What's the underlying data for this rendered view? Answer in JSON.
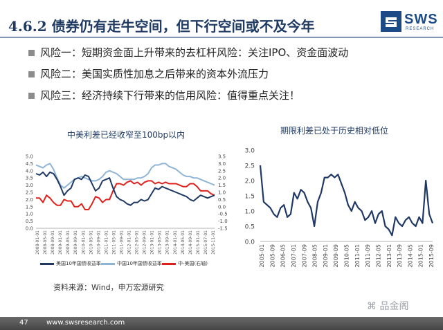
{
  "slide": {
    "title": "4.6.2 债券仍有走牛空间，但下行空间或不及今年",
    "logo_text": "SWS",
    "logo_sub": "RESEARCH"
  },
  "bullets": [
    "风险一：短期资金面上升带来的去杠杆风险：关注IPO、资金面波动",
    "风险二：美国实质性加息之后带来的资本外流压力",
    "风险三：经济持续下行带来的信用风险：值得重点关注！"
  ],
  "colors": {
    "navy": "#1f3a63",
    "us_series": "#1f3864",
    "cn_series": "#8eb4d6",
    "spread_series": "#e0201b",
    "right_series": "#1f3864"
  },
  "chart_data": [
    {
      "type": "line",
      "title": "中美利差已经收窄至100bp以内",
      "y_left_ticks": [
        "5.0",
        "4.5",
        "4.0",
        "3.5",
        "3.0",
        "2.5",
        "2.0",
        "1.5",
        "1.0",
        "0.5",
        "0.0"
      ],
      "y_right_ticks": [
        "3.5",
        "3.0",
        "2.5",
        "2.0",
        "1.5",
        "1.0",
        "0.5",
        "0.0",
        "-0.5",
        "-1.0",
        "-1.5"
      ],
      "ylim_left": [
        0,
        5
      ],
      "ylim_right": [
        -1.5,
        3.5
      ],
      "x_ticks": [
        "2008-01-01",
        "2008-05-01",
        "2008-09-01",
        "2009-01-01",
        "2009-05-01",
        "2009-09-01",
        "2010-01-01",
        "2010-05-01",
        "2010-09-01",
        "2011-01-01",
        "2011-05-01",
        "2011-09-01",
        "2012-01-01",
        "2012-05-01",
        "2012-09-01",
        "2013-01-01",
        "2013-05-01",
        "2013-09-01",
        "2014-01-01",
        "2014-05-01",
        "2014-09-01",
        "2015-01-01",
        "2015-07-01",
        "2015-11-01"
      ],
      "series": [
        {
          "name": "美国10年国债收益率",
          "axis": "left",
          "values": [
            3.8,
            3.7,
            3.9,
            3.6,
            3.9,
            3.8,
            3.4,
            2.9,
            2.3,
            2.6,
            2.8,
            3.4,
            3.5,
            3.4,
            3.7,
            3.6,
            3.1,
            2.6,
            2.8,
            3.3,
            3.4,
            3.5,
            2.8,
            2.2,
            2.0,
            1.9,
            1.7,
            1.6,
            1.8,
            1.8,
            2.0,
            1.9,
            2.0,
            2.4,
            2.8,
            2.7,
            2.9,
            2.8,
            2.7,
            2.6,
            2.5,
            2.4,
            2.3,
            2.2,
            2.0,
            1.9,
            2.1,
            2.3,
            2.2,
            2.1,
            2.2,
            2.3
          ]
        },
        {
          "name": "中国10年国债收益率",
          "axis": "left",
          "values": [
            4.4,
            4.3,
            4.2,
            4.4,
            4.5,
            4.1,
            3.5,
            3.0,
            2.8,
            3.0,
            3.2,
            3.4,
            3.5,
            3.6,
            3.5,
            3.4,
            3.3,
            3.3,
            3.4,
            3.6,
            3.9,
            4.0,
            3.9,
            3.8,
            3.6,
            3.4,
            3.4,
            3.4,
            3.4,
            3.5,
            3.5,
            3.6,
            3.8,
            4.2,
            4.4,
            4.4,
            4.5,
            4.5,
            4.3,
            4.2,
            4.1,
            3.9,
            3.7,
            3.6,
            3.6,
            3.5,
            3.5,
            3.4,
            3.3,
            3.2,
            3.1,
            3.0
          ]
        },
        {
          "name": "中-美国(右轴)",
          "axis": "right",
          "values": [
            0.6,
            0.6,
            0.3,
            0.8,
            0.6,
            0.3,
            0.1,
            0.1,
            0.5,
            0.4,
            0.4,
            0.0,
            0.0,
            0.2,
            -0.2,
            -0.2,
            0.2,
            0.7,
            0.6,
            0.3,
            0.5,
            0.5,
            1.1,
            1.6,
            1.6,
            1.5,
            1.7,
            1.8,
            1.6,
            1.7,
            1.5,
            1.7,
            1.8,
            1.8,
            1.6,
            1.7,
            1.6,
            1.7,
            1.6,
            1.6,
            1.6,
            1.5,
            1.4,
            1.4,
            1.6,
            1.6,
            1.4,
            1.1,
            1.1,
            1.1,
            0.9,
            0.8
          ]
        }
      ],
      "legend": [
        "美国10年国债收益率",
        "中国10年国债收益率",
        "中-美国(右轴)"
      ]
    },
    {
      "type": "line",
      "title": "期限利差已处于历史相对低位",
      "y_ticks": [
        "3.0",
        "2.5",
        "2.0",
        "1.5",
        "1.0",
        "0.5",
        "0.0"
      ],
      "ylim": [
        0,
        3
      ],
      "x_ticks": [
        "2005-01",
        "2005-09",
        "2006-05",
        "2007-01",
        "2007-09",
        "2008-05",
        "2009-01",
        "2009-09",
        "2010-05",
        "2011-01",
        "2011-09",
        "2012-05",
        "2013-01",
        "2013-09",
        "2014-05",
        "2015-01",
        "2015-09"
      ],
      "series": [
        {
          "name": "期限利差",
          "values": [
            2.5,
            1.3,
            1.2,
            1.1,
            0.9,
            0.8,
            1.1,
            1.2,
            0.8,
            0.9,
            1.6,
            1.4,
            1.7,
            1.6,
            1.3,
            1.1,
            0.5,
            1.3,
            1.6,
            2.1,
            2.1,
            2.2,
            2.1,
            2.2,
            1.9,
            1.6,
            1.2,
            1.0,
            1.3,
            1.1,
            1.0,
            0.7,
            0.8,
            1.0,
            0.6,
            0.9,
            1.0,
            0.5,
            0.4,
            0.2,
            0.8,
            0.6,
            0.5,
            0.7,
            0.8,
            0.6,
            0.5,
            0.8,
            0.6,
            2.0,
            0.9,
            0.6
          ]
        }
      ]
    }
  ],
  "source": "资料来源：Wind，申万宏源研究",
  "watermark": "品金阁",
  "footer": {
    "page": "47",
    "url": "www.swsresearch.com"
  }
}
